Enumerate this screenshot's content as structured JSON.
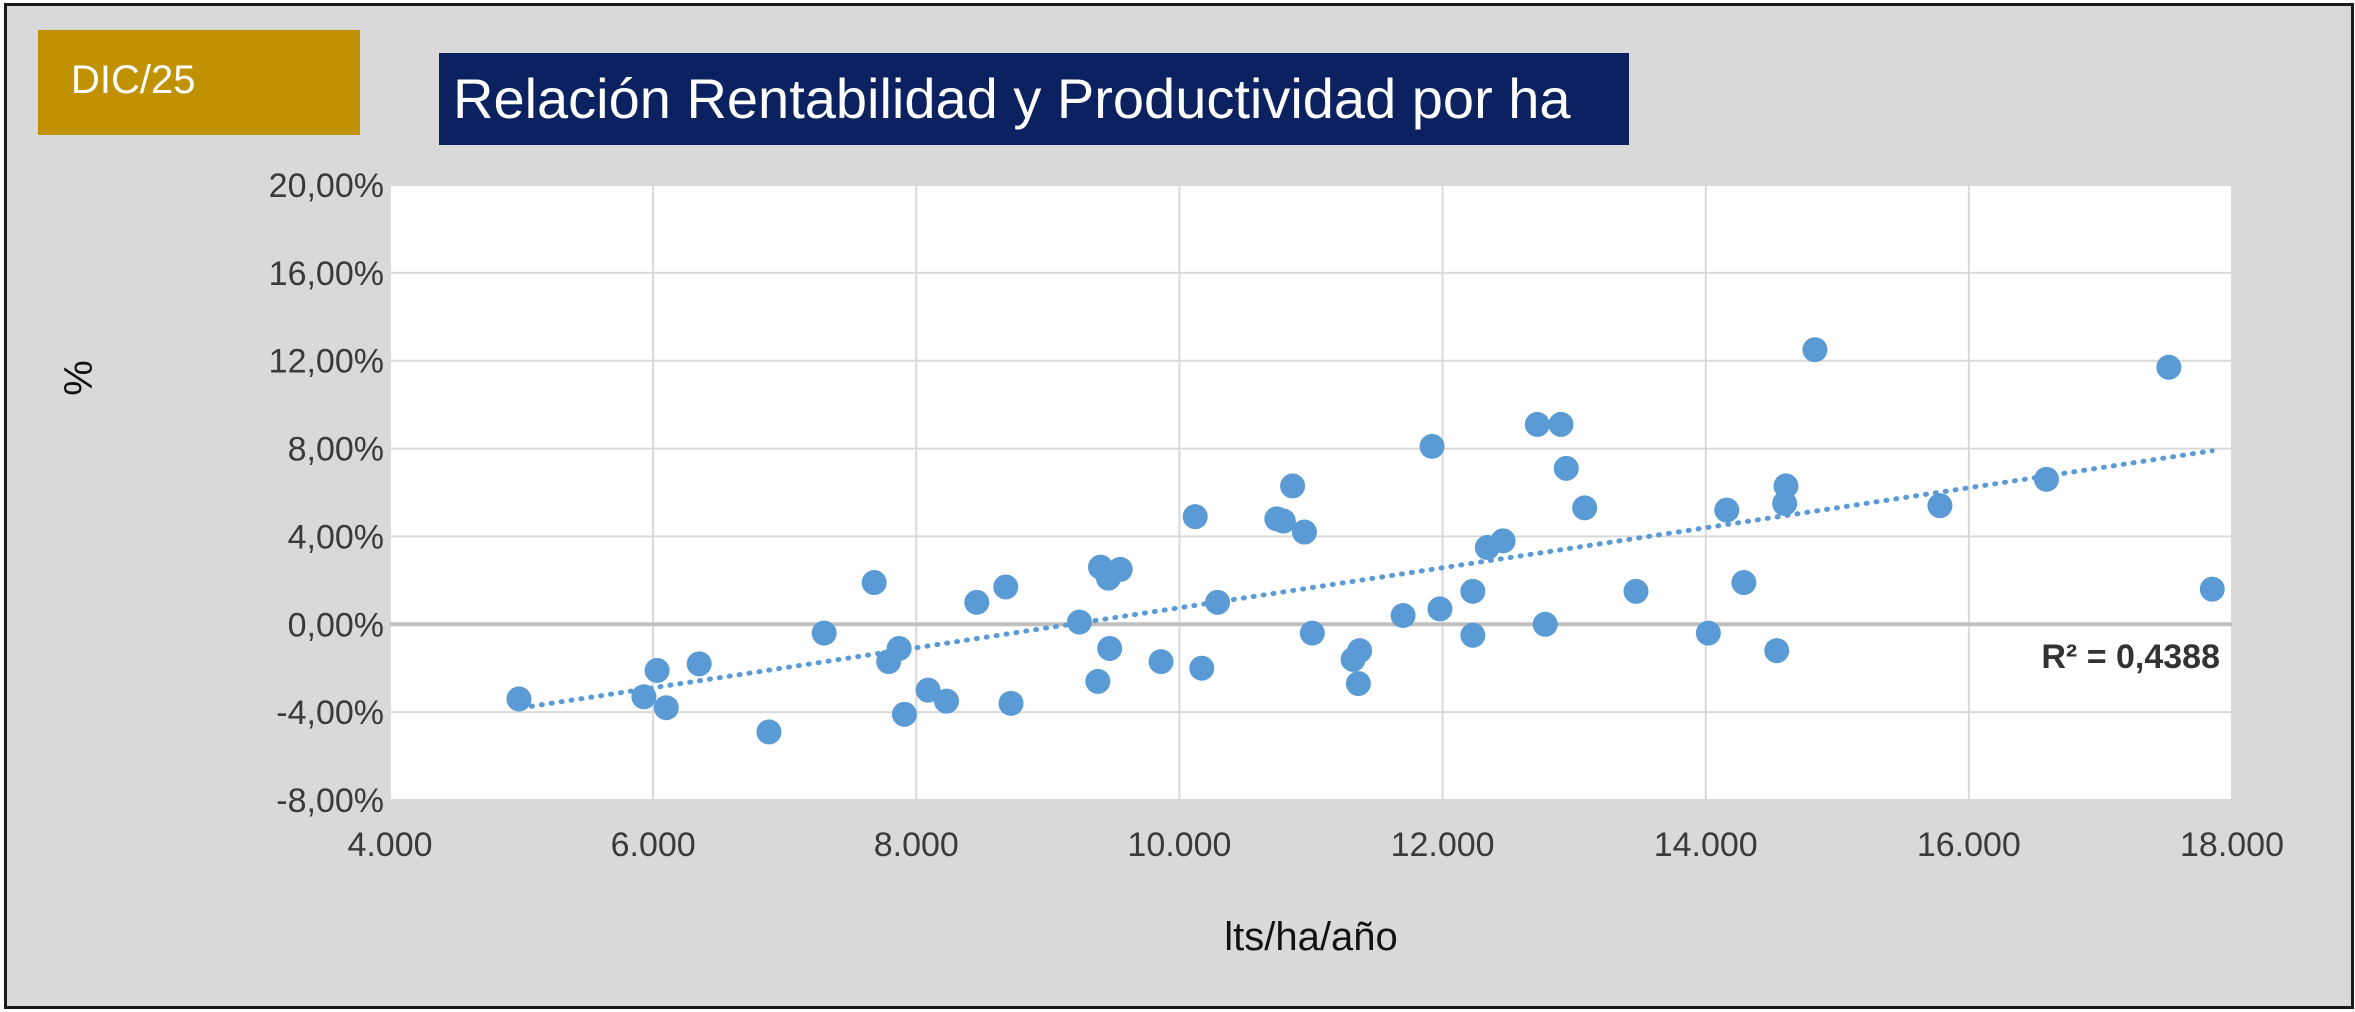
{
  "badge": {
    "label": "DIC/25",
    "color": "#c09100"
  },
  "title": {
    "text": "Relación Rentabilidad y Productividad por ha",
    "color": "#0b2160"
  },
  "chart_data": {
    "type": "scatter",
    "title": "Relación Rentabilidad y Productividad por ha",
    "xlabel": "lts/ha/año",
    "ylabel": "%",
    "xlim": [
      4000,
      18000
    ],
    "ylim": [
      -8,
      20
    ],
    "x_ticks": [
      4000,
      6000,
      8000,
      10000,
      12000,
      14000,
      16000,
      18000
    ],
    "x_tick_labels": [
      "4.000",
      "6.000",
      "8.000",
      "10.000",
      "12.000",
      "14.000",
      "16.000",
      "18.000"
    ],
    "y_ticks": [
      -8,
      -4,
      0,
      4,
      8,
      12,
      16,
      20
    ],
    "y_tick_labels": [
      "-8,00%",
      "-4,00%",
      "0,00%",
      "4,00%",
      "8,00%",
      "12,00%",
      "16,00%",
      "20,00%"
    ],
    "grid": true,
    "marker_color": "#5b9bd5",
    "trendline": {
      "type": "linear",
      "style": "dotted",
      "color": "#5b9bd5",
      "start": [
        5000,
        -3.8
      ],
      "end": [
        17850,
        7.9
      ],
      "r2_label": "R² = 0,4388"
    },
    "points": [
      [
        4980,
        -3.4
      ],
      [
        5930,
        -3.3
      ],
      [
        6030,
        -2.1
      ],
      [
        6100,
        -3.8
      ],
      [
        6350,
        -1.8
      ],
      [
        6880,
        -4.9
      ],
      [
        7300,
        -0.4
      ],
      [
        7680,
        1.9
      ],
      [
        7790,
        -1.7
      ],
      [
        7870,
        -1.1
      ],
      [
        7910,
        -4.1
      ],
      [
        8090,
        -3.0
      ],
      [
        8230,
        -3.5
      ],
      [
        8460,
        1.0
      ],
      [
        8680,
        1.7
      ],
      [
        8720,
        -3.6
      ],
      [
        9240,
        0.1
      ],
      [
        9380,
        -2.6
      ],
      [
        9400,
        2.6
      ],
      [
        9460,
        2.1
      ],
      [
        9470,
        -1.1
      ],
      [
        9550,
        2.5
      ],
      [
        9860,
        -1.7
      ],
      [
        10120,
        4.9
      ],
      [
        10170,
        -2.0
      ],
      [
        10290,
        1.0
      ],
      [
        10740,
        4.8
      ],
      [
        10790,
        4.7
      ],
      [
        10860,
        6.3
      ],
      [
        10950,
        4.2
      ],
      [
        11010,
        -0.4
      ],
      [
        11320,
        -1.6
      ],
      [
        11370,
        -1.2
      ],
      [
        11360,
        -2.7
      ],
      [
        11700,
        0.4
      ],
      [
        11920,
        8.1
      ],
      [
        11980,
        0.7
      ],
      [
        12230,
        1.5
      ],
      [
        12230,
        -0.5
      ],
      [
        12340,
        3.5
      ],
      [
        12460,
        3.8
      ],
      [
        12720,
        9.1
      ],
      [
        12780,
        0.0
      ],
      [
        12900,
        9.1
      ],
      [
        12940,
        7.1
      ],
      [
        13080,
        5.3
      ],
      [
        13470,
        1.5
      ],
      [
        14020,
        -0.4
      ],
      [
        14160,
        5.2
      ],
      [
        14290,
        1.9
      ],
      [
        14540,
        -1.2
      ],
      [
        14610,
        6.3
      ],
      [
        14600,
        5.5
      ],
      [
        14830,
        12.5
      ],
      [
        15780,
        5.4
      ],
      [
        16590,
        6.6
      ],
      [
        17520,
        11.7
      ],
      [
        17850,
        1.6
      ]
    ]
  }
}
